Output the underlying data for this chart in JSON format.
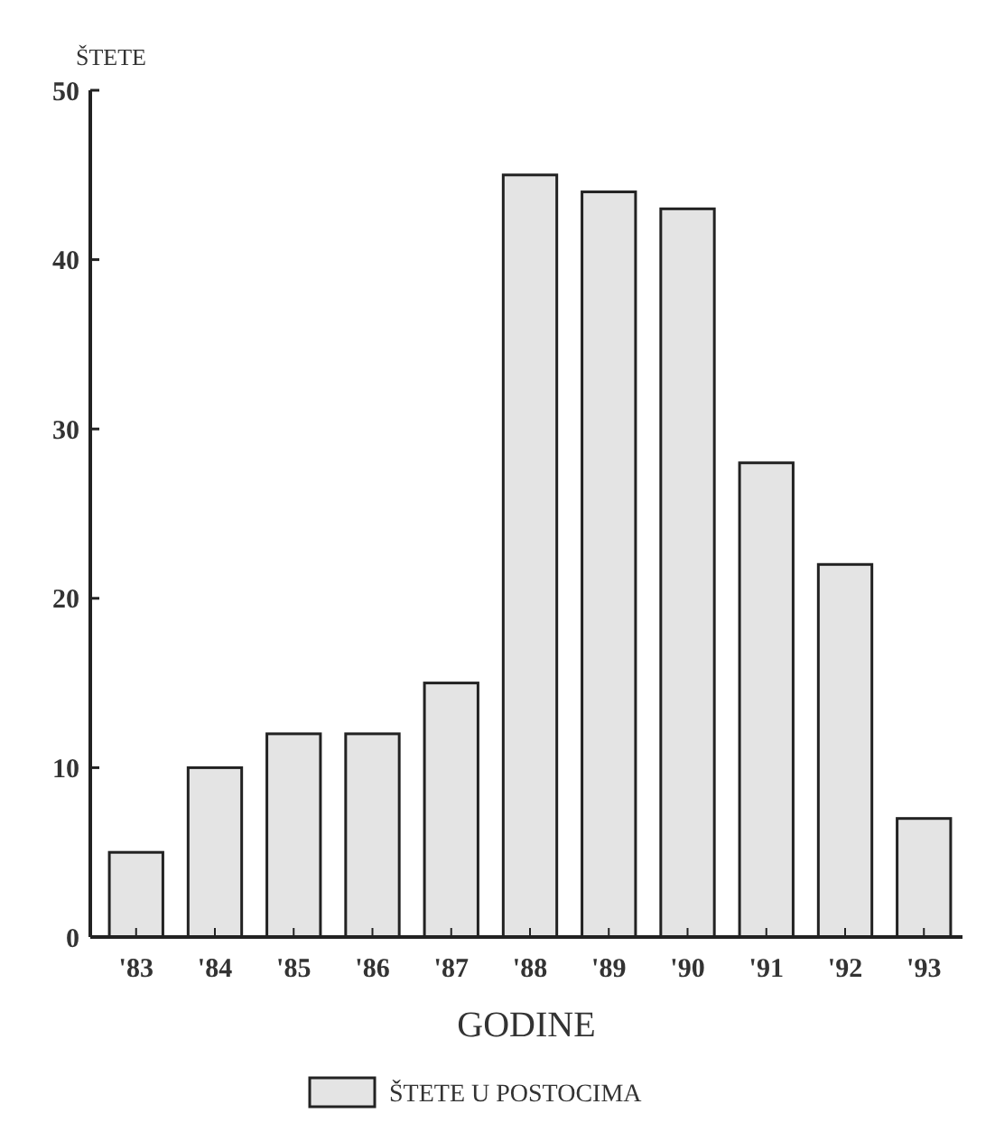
{
  "chart_data": {
    "type": "bar",
    "xlabel": "GODINE",
    "ylabel": "ŠTETE",
    "categories": [
      "'83",
      "'84",
      "'85",
      "'86",
      "'87",
      "'88",
      "'89",
      "'90",
      "'91",
      "'92",
      "'93"
    ],
    "series": [
      {
        "name": "ŠTETE U POSTOCIMA",
        "color": "#e4e4e4",
        "values": [
          5,
          10,
          12,
          12,
          15,
          45,
          44,
          43,
          28,
          22,
          7
        ]
      }
    ],
    "ylim": [
      0,
      50
    ],
    "yticks": [
      0,
      10,
      20,
      30,
      40,
      50
    ],
    "grid": false,
    "legend": "bottom"
  }
}
